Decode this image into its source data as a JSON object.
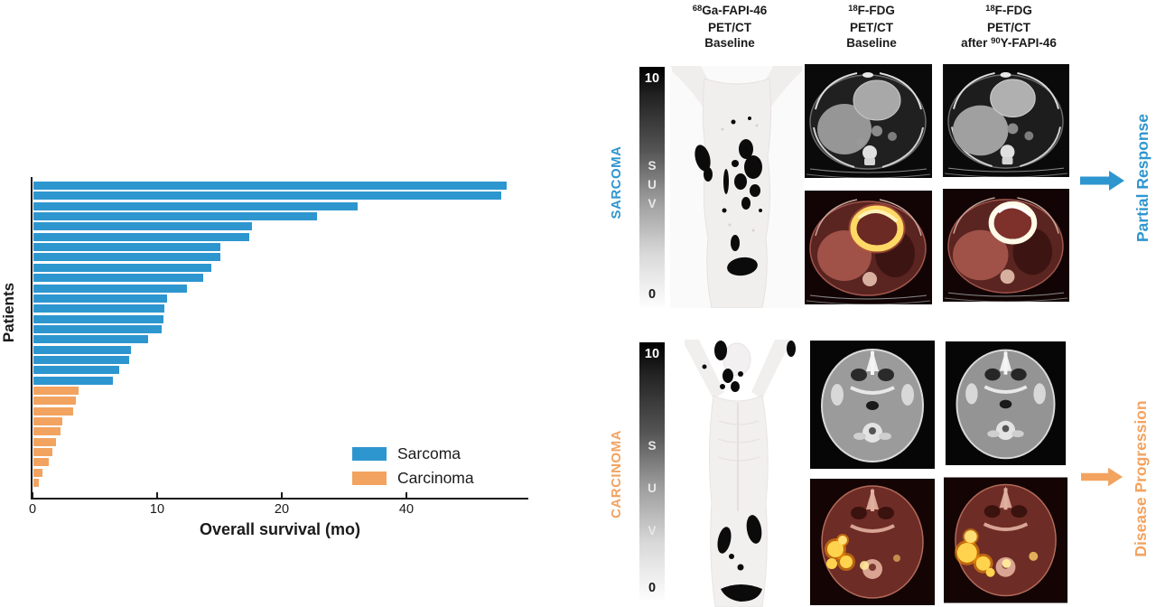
{
  "colors": {
    "sarcoma_blue": "#2e96cf",
    "carcinoma_orange": "#f2a360",
    "axis_black": "#1a1a1a"
  },
  "chart_data": {
    "type": "bar",
    "orientation": "horizontal",
    "title": "",
    "xlabel": "Overall survival (mo)",
    "ylabel": "Patients",
    "x_tick_labels": [
      "0",
      "10",
      "20",
      "40"
    ],
    "axis_layout": "ticks evenly spaced as printed; 20-40 segment compressed",
    "legend_position": "lower right",
    "series": [
      {
        "name": "Sarcoma",
        "color": "#2e96cf",
        "values": [
          56,
          55,
          32,
          25.5,
          17.5,
          17.3,
          15,
          15,
          14.3,
          13.6,
          12.3,
          10.7,
          10.5,
          10.4,
          10.3,
          9.2,
          7.8,
          7.7,
          6.9,
          6.4
        ]
      },
      {
        "name": "Carcinoma",
        "color": "#f2a360",
        "values": [
          3.6,
          3.4,
          3.2,
          2.3,
          2.2,
          1.8,
          1.5,
          1.2,
          0.7,
          0.4
        ]
      }
    ]
  },
  "right_panel": {
    "column_headers": [
      {
        "sup1": "68",
        "line1": "Ga-FAPI-46",
        "line2": "PET/CT",
        "pre3": "",
        "sup3": "",
        "line3": "Baseline"
      },
      {
        "sup1": "18",
        "line1": "F-FDG",
        "line2": "PET/CT",
        "pre3": "",
        "sup3": "",
        "line3": "Baseline"
      },
      {
        "sup1": "18",
        "line1": "F-FDG",
        "line2": "PET/CT",
        "pre3": "after ",
        "sup3": "90",
        "line3": "Y-FAPI-46"
      }
    ],
    "rows": [
      {
        "label": "SARCOMA",
        "color": "#2e96cf",
        "suv": {
          "top": "10",
          "letters": [
            "S",
            "U",
            "V"
          ],
          "bottom": "0"
        },
        "outcome": "Partial Response"
      },
      {
        "label": "CARCINOMA",
        "color": "#f2a360",
        "suv": {
          "top": "10",
          "letters": [
            "S",
            "U",
            "V"
          ],
          "bottom": "0"
        },
        "outcome": "Disease Progression"
      }
    ]
  }
}
